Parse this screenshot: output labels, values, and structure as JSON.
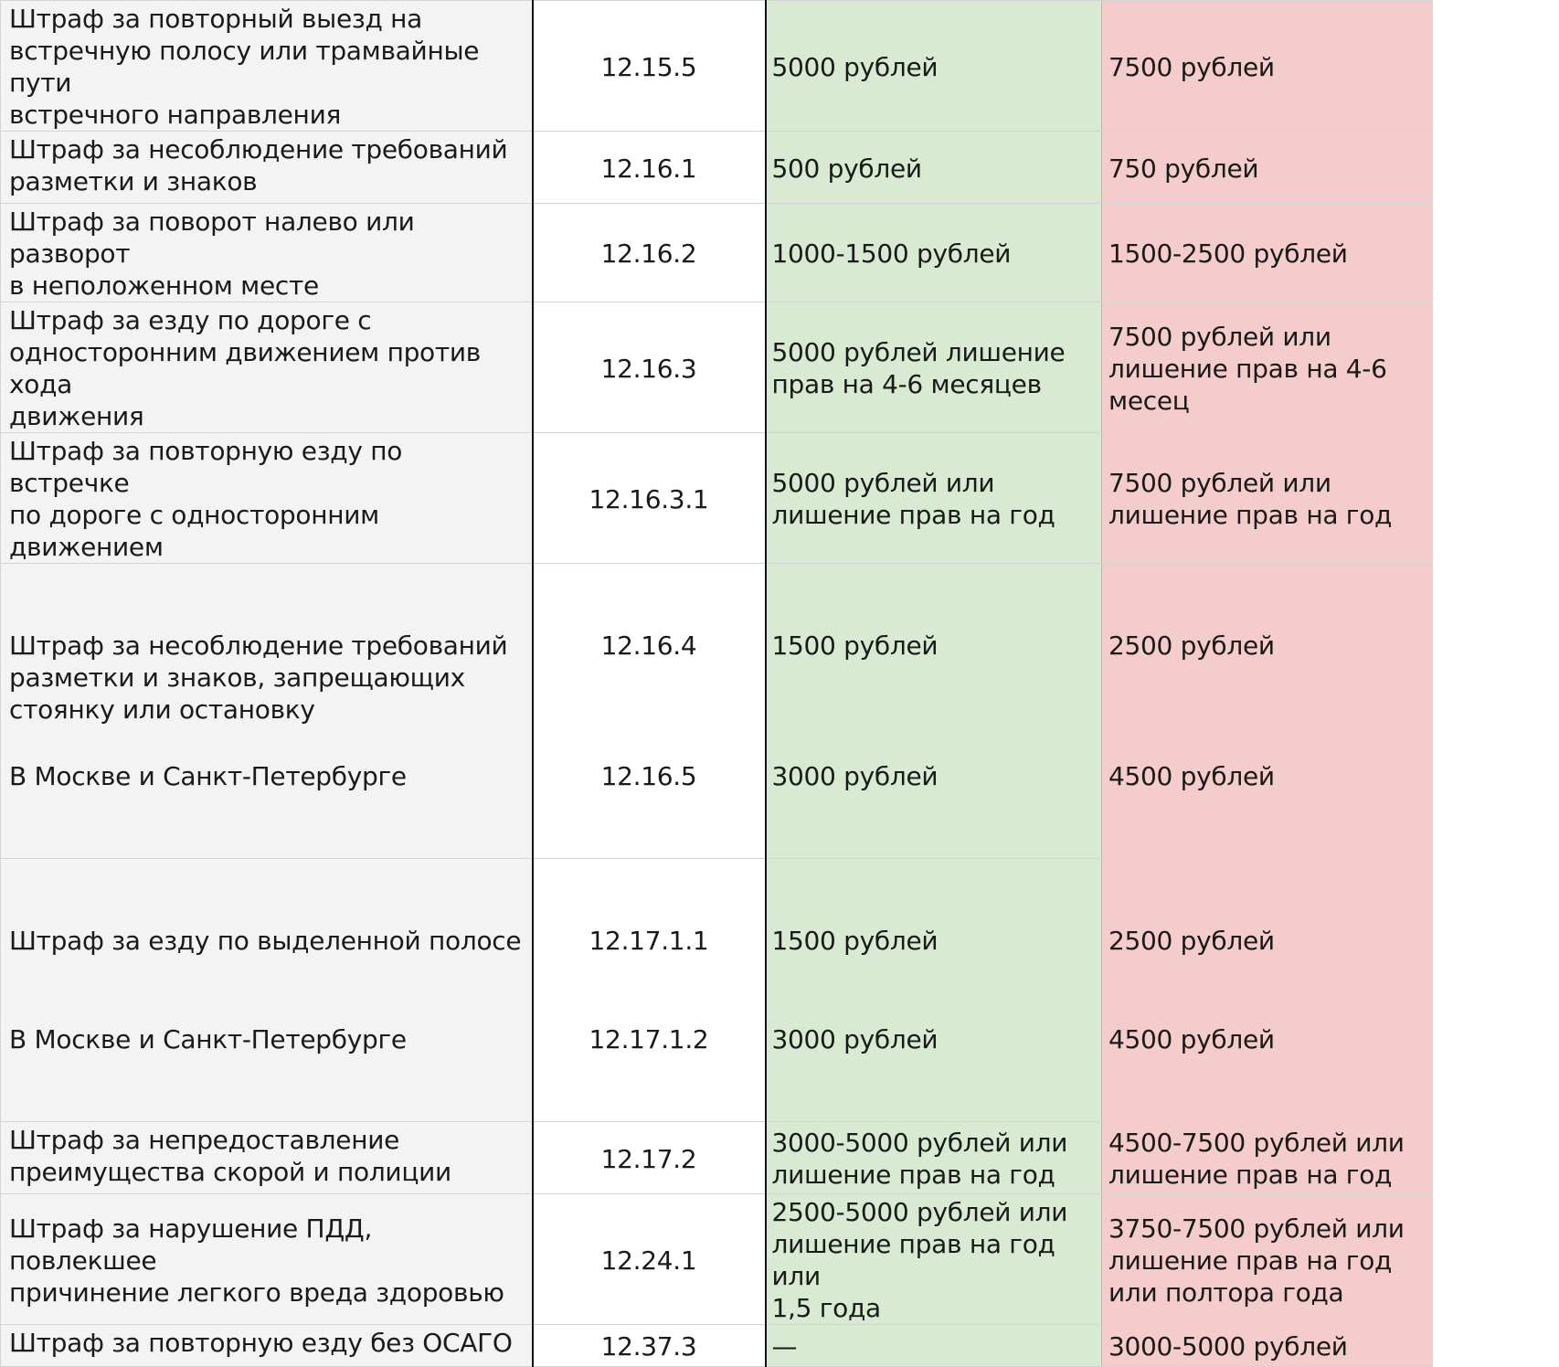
{
  "columns": [
    "description",
    "article",
    "fine",
    "fine_increased"
  ],
  "rows": [
    {
      "description": "Штраф за повторный выезд на\nвстречную полосу или трамвайные пути\nвстречного направления",
      "article": "12.15.5",
      "fine": "5000 рублей",
      "fine_increased": "7500 рублей"
    },
    {
      "description": "Штраф за несоблюдение требований\nразметки и знаков",
      "article": "12.16.1",
      "fine": "500 рублей",
      "fine_increased": "750 рублей"
    },
    {
      "description": "Штраф за поворот налево или разворот\nв неположенном месте",
      "article": "12.16.2",
      "fine": "1000-1500 рублей",
      "fine_increased": "1500-2500 рублей"
    },
    {
      "description": "Штраф за езду по дороге с\nодносторонним движением против хода\nдвижения",
      "article": "12.16.3",
      "fine": "5000 рублей лишение\nправ на 4-6 месяцев",
      "fine_increased": "7500 рублей или\nлишение прав на 4-6\nмесец"
    },
    {
      "description": "Штраф за повторную езду по встречке\nпо дороге с односторонним движением",
      "article": "12.16.3.1",
      "fine": "5000 рублей или\nлишение прав на год",
      "fine_increased": "7500 рублей или\nлишение прав на год"
    },
    {
      "description": "Штраф за несоблюдение требований\nразметки и знаков, запрещающих\nстоянку или остановку",
      "article": "12.16.4",
      "fine": "1500 рублей",
      "fine_increased": "2500 рублей",
      "sub_description": "В Москве и Санкт-Петербурге",
      "sub_article": "12.16.5",
      "sub_fine": "3000 рублей",
      "sub_fine_increased": "4500 рублей"
    },
    {
      "description": "Штраф за езду по выделенной полосе",
      "article": "12.17.1.1",
      "fine": "1500 рублей",
      "fine_increased": "2500 рублей",
      "sub_description": "В Москве и Санкт-Петербурге",
      "sub_article": "12.17.1.2",
      "sub_fine": "3000 рублей",
      "sub_fine_increased": "4500 рублей"
    },
    {
      "description": "Штраф за непредоставление\nпреимущества скорой и полиции",
      "article": "12.17.2",
      "fine": "3000-5000 рублей или\nлишение прав на год",
      "fine_increased": "4500-7500 рублей или\nлишение прав на год"
    },
    {
      "description": "Штраф за нарушение ПДД, повлекшее\nпричинение легкого вреда здоровью",
      "article": "12.24.1",
      "fine": "2500-5000 рублей или\nлишение прав на год или\n1,5 года",
      "fine_increased": "3750-7500 рублей или\nлишение прав на год\nили полтора года"
    },
    {
      "description": "Штраф за повторную езду без ОСАГО",
      "article": "12.37.3",
      "fine": "—",
      "fine_increased": "3000-5000 рублей"
    }
  ],
  "colors": {
    "description_bg": "#f3f3f3",
    "article_bg": "#ffffff",
    "fine_bg": "#d9ead3",
    "fine_increased_bg": "#f4cccc"
  }
}
